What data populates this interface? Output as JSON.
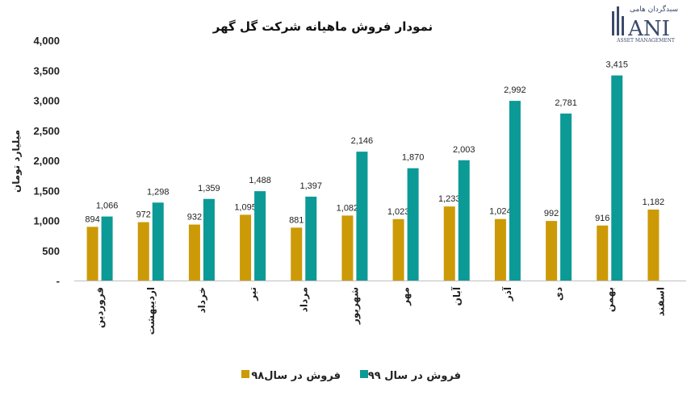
{
  "chart_data": {
    "type": "bar",
    "title": "نمودار فروش ماهیانه شرکت گل گهر",
    "ylabel": "میلیارد تومان",
    "xlabel": "",
    "ylim": [
      0,
      4000
    ],
    "yticks": [
      0,
      500,
      1000,
      1500,
      2000,
      2500,
      3000,
      3500,
      4000
    ],
    "ytick_labels": [
      "-",
      "500",
      "1,000",
      "1,500",
      "2,000",
      "2,500",
      "3,000",
      "3,500",
      "4,000"
    ],
    "categories": [
      "فروردین",
      "اردیبهشت",
      "خرداد",
      "تیر",
      "مرداد",
      "شهریور",
      "مهر",
      "آبان",
      "آذر",
      "دی",
      "بهمن",
      "اسفند"
    ],
    "series": [
      {
        "name": "فروش در سال۹۸",
        "color": "#cc9a06",
        "values": [
          894,
          972,
          932,
          1095,
          881,
          1082,
          1023,
          1233,
          1024,
          992,
          916,
          1182
        ],
        "labels": [
          "894",
          "972",
          "932",
          "1,095",
          "881",
          "1,082",
          "1,023",
          "1,233",
          "1,024",
          "992",
          "916",
          "1,182"
        ]
      },
      {
        "name": "فروش در سال ۹۹",
        "color": "#0b9a96",
        "values": [
          1066,
          1298,
          1359,
          1488,
          1397,
          2146,
          1870,
          2003,
          2992,
          2781,
          3415,
          null
        ],
        "labels": [
          "1,066",
          "1,298",
          "1,359",
          "1,488",
          "1,397",
          "2,146",
          "1,870",
          "2,003",
          "2,992",
          "2,781",
          "3,415",
          null
        ]
      }
    ],
    "grid": false,
    "legend_position": "bottom"
  },
  "logo": {
    "persian_text": "سبدگردان هامی",
    "brand": "ANI",
    "sub": "ASSET MANAGEMENT"
  }
}
